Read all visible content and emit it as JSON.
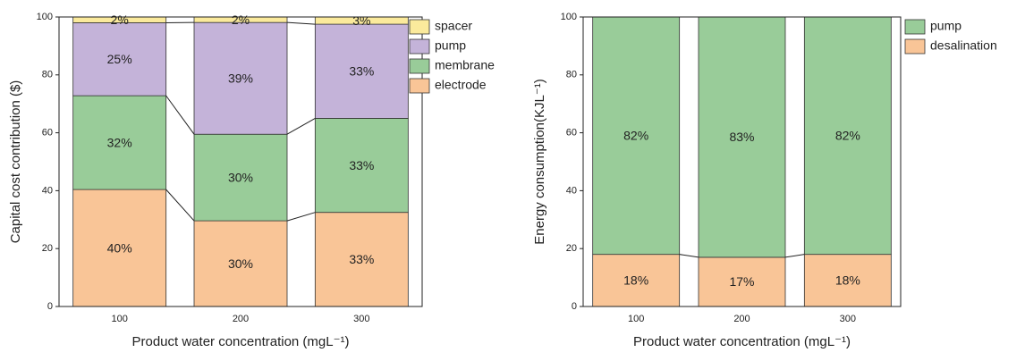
{
  "chart_data": [
    {
      "type": "stacked-bar",
      "x_label": "Product water concentration (mgL⁻¹)",
      "y_label": "Capital cost contribution ($)",
      "categories": [
        "100",
        "200",
        "300"
      ],
      "series": [
        {
          "name": "electrode",
          "color": "#f9c597",
          "values": [
            40.4,
            29.6,
            32.5
          ],
          "value_labels": [
            "40%",
            "30%",
            "33%"
          ]
        },
        {
          "name": "membrane",
          "color": "#99cc99",
          "values": [
            32.4,
            29.9,
            32.5
          ],
          "value_labels": [
            "32%",
            "30%",
            "33%"
          ]
        },
        {
          "name": "pump",
          "color": "#c4b3d9",
          "values": [
            25.2,
            38.6,
            32.5
          ],
          "value_labels": [
            "25%",
            "39%",
            "33%"
          ]
        },
        {
          "name": "spacer",
          "color": "#fbea9c",
          "values": [
            2.0,
            1.9,
            2.5
          ],
          "value_labels": [
            "2%",
            "2%",
            "3%"
          ]
        }
      ],
      "ylim": [
        0,
        100
      ],
      "yticks": [
        0,
        20,
        40,
        60,
        80,
        100
      ]
    },
    {
      "type": "stacked-bar",
      "x_label": "Product water concentration (mgL⁻¹)",
      "y_label": "Energy consumption(KJL⁻¹)",
      "categories": [
        "100",
        "200",
        "300"
      ],
      "series": [
        {
          "name": "desalination",
          "color": "#f9c597",
          "values": [
            18,
            17,
            18
          ],
          "value_labels": [
            "18%",
            "17%",
            "18%"
          ]
        },
        {
          "name": "pump",
          "color": "#99cc99",
          "values": [
            82,
            83,
            82
          ],
          "value_labels": [
            "82%",
            "83%",
            "82%"
          ]
        }
      ],
      "ylim": [
        0,
        100
      ],
      "yticks": [
        0,
        20,
        40,
        60,
        80,
        100
      ]
    }
  ]
}
